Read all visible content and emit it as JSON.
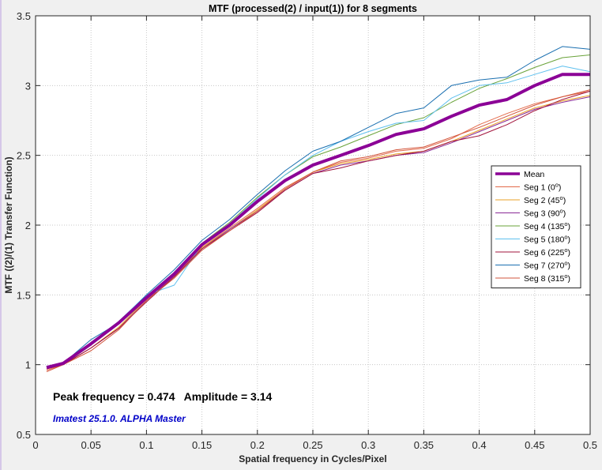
{
  "chart_data": {
    "type": "line",
    "title": "MTF (processed(2) / input(1)) for 8 segments",
    "xlabel": "Spatial frequency in Cycles/Pixel",
    "ylabel": "MTF  ((2)/(1) Transfer Function)",
    "xlim": [
      0,
      0.5
    ],
    "ylim": [
      0.5,
      3.5
    ],
    "x_ticks": [
      "0",
      "0.05",
      "0.1",
      "0.15",
      "0.2",
      "0.25",
      "0.3",
      "0.35",
      "0.4",
      "0.45",
      "0.5"
    ],
    "y_ticks": [
      "0.5",
      "1",
      "1.5",
      "2",
      "2.5",
      "3",
      "3.5"
    ],
    "grid": true,
    "legend_position": "right",
    "peak_text": "Peak frequency = 0.474   Amplitude = 3.14",
    "software_text": "Imatest 25.1.0. ALPHA Master",
    "x": [
      0.01,
      0.025,
      0.05,
      0.075,
      0.1,
      0.125,
      0.15,
      0.175,
      0.2,
      0.225,
      0.25,
      0.275,
      0.3,
      0.325,
      0.35,
      0.375,
      0.4,
      0.425,
      0.45,
      0.475,
      0.5
    ],
    "series": [
      {
        "name": "Mean",
        "label": "Mean",
        "sup": "",
        "color": "#8b0096",
        "width": 4,
        "values": [
          0.98,
          1.01,
          1.15,
          1.3,
          1.48,
          1.65,
          1.86,
          2.0,
          2.17,
          2.32,
          2.43,
          2.5,
          2.57,
          2.65,
          2.69,
          2.78,
          2.86,
          2.9,
          3.0,
          3.08,
          3.08
        ]
      },
      {
        "name": "Seg 1 (0°)",
        "label": "Seg 1 (0",
        "sup": "o",
        "color": "#e36a4a",
        "width": 1,
        "values": [
          0.96,
          1.0,
          1.12,
          1.26,
          1.46,
          1.64,
          1.84,
          1.98,
          2.12,
          2.27,
          2.38,
          2.45,
          2.48,
          2.53,
          2.55,
          2.62,
          2.72,
          2.8,
          2.87,
          2.92,
          2.96
        ]
      },
      {
        "name": "Seg 2 (45°)",
        "label": "Seg 2 (45",
        "sup": "o",
        "color": "#e8a227",
        "width": 1,
        "values": [
          0.97,
          1.0,
          1.12,
          1.27,
          1.47,
          1.64,
          1.84,
          1.97,
          2.11,
          2.26,
          2.38,
          2.44,
          2.47,
          2.51,
          2.53,
          2.6,
          2.68,
          2.76,
          2.84,
          2.89,
          2.93
        ]
      },
      {
        "name": "Seg 3 (90°)",
        "label": "Seg 3 (90",
        "sup": "o",
        "color": "#8a2a96",
        "width": 1,
        "values": [
          0.97,
          1.0,
          1.12,
          1.26,
          1.46,
          1.63,
          1.83,
          1.97,
          2.1,
          2.25,
          2.37,
          2.43,
          2.46,
          2.5,
          2.52,
          2.59,
          2.67,
          2.75,
          2.83,
          2.88,
          2.92
        ]
      },
      {
        "name": "Seg 4 (135°)",
        "label": "Seg 4 (135",
        "sup": "o",
        "color": "#6aa33a",
        "width": 1,
        "values": [
          0.98,
          1.0,
          1.14,
          1.3,
          1.49,
          1.66,
          1.87,
          2.02,
          2.2,
          2.36,
          2.49,
          2.56,
          2.64,
          2.72,
          2.77,
          2.88,
          2.98,
          3.05,
          3.13,
          3.2,
          3.22
        ]
      },
      {
        "name": "Seg 5 (180°)",
        "label": "Seg 5 (180",
        "sup": "o",
        "color": "#5fc0ee",
        "width": 1,
        "values": [
          0.99,
          1.0,
          1.16,
          1.31,
          1.5,
          1.57,
          1.86,
          2.01,
          2.19,
          2.36,
          2.5,
          2.6,
          2.67,
          2.73,
          2.75,
          2.91,
          3.0,
          3.02,
          3.08,
          3.14,
          3.1
        ]
      },
      {
        "name": "Seg 6 (225°)",
        "label": "Seg 6 (225",
        "sup": "o",
        "color": "#a2143c",
        "width": 1,
        "values": [
          0.97,
          1.0,
          1.12,
          1.26,
          1.45,
          1.63,
          1.83,
          1.96,
          2.09,
          2.25,
          2.37,
          2.41,
          2.46,
          2.5,
          2.53,
          2.6,
          2.64,
          2.72,
          2.82,
          2.9,
          2.96
        ]
      },
      {
        "name": "Seg 7 (270°)",
        "label": "Seg 7 (270",
        "sup": "o",
        "color": "#1a6fb0",
        "width": 1,
        "values": [
          0.98,
          1.01,
          1.18,
          1.3,
          1.5,
          1.68,
          1.89,
          2.04,
          2.22,
          2.39,
          2.53,
          2.6,
          2.7,
          2.8,
          2.84,
          3.0,
          3.04,
          3.06,
          3.18,
          3.28,
          3.26
        ]
      },
      {
        "name": "Seg 8 (315°)",
        "label": "Seg 8 (315",
        "sup": "o",
        "color": "#d2553c",
        "width": 1,
        "values": [
          0.95,
          1.0,
          1.1,
          1.25,
          1.46,
          1.62,
          1.82,
          1.96,
          2.1,
          2.26,
          2.38,
          2.46,
          2.49,
          2.54,
          2.56,
          2.63,
          2.7,
          2.78,
          2.86,
          2.92,
          2.97
        ]
      }
    ]
  }
}
